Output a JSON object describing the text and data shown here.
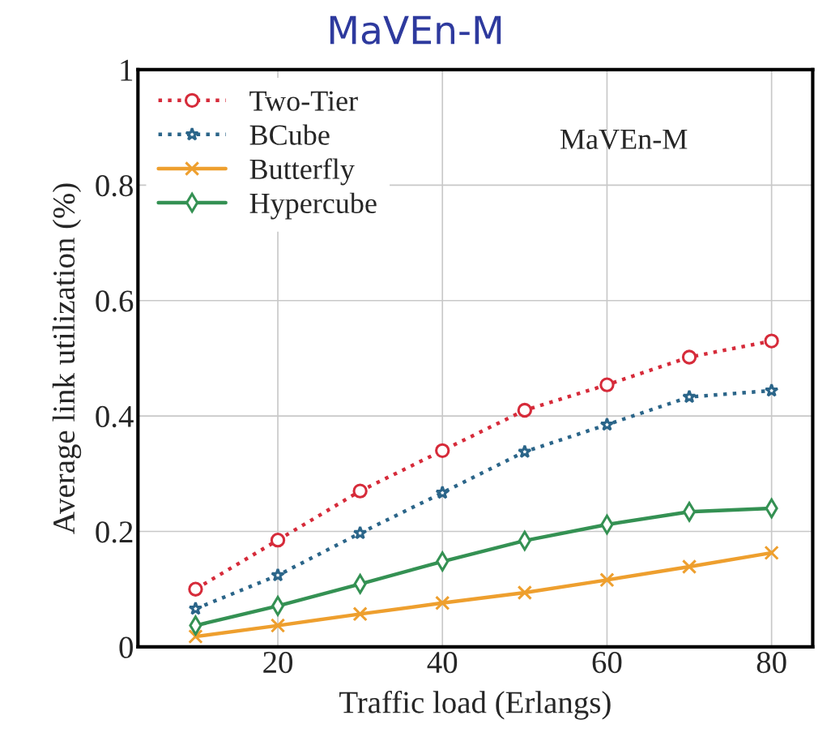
{
  "chart_data": {
    "type": "line",
    "title": "MaVEn-M",
    "xlabel": "Traffic load (Erlangs)",
    "ylabel": "Average link utilization (%)",
    "annotations": [
      "MaVEn-M"
    ],
    "x": [
      10,
      20,
      30,
      40,
      50,
      60,
      70,
      80
    ],
    "series": [
      {
        "name": "Two-Tier",
        "color": "#d62b3a",
        "marker": "circle",
        "line_style": "dotted",
        "values": [
          0.1,
          0.185,
          0.27,
          0.34,
          0.41,
          0.454,
          0.502,
          0.53
        ]
      },
      {
        "name": "BCube",
        "color": "#2b6589",
        "marker": "star",
        "line_style": "dotted",
        "values": [
          0.066,
          0.124,
          0.197,
          0.267,
          0.338,
          0.385,
          0.433,
          0.444
        ]
      },
      {
        "name": "Butterfly",
        "color": "#ee9f2e",
        "marker": "cross",
        "line_style": "solid",
        "values": [
          0.018,
          0.037,
          0.057,
          0.076,
          0.094,
          0.116,
          0.139,
          0.163
        ]
      },
      {
        "name": "Hypercube",
        "color": "#349153",
        "marker": "diamond",
        "line_style": "solid",
        "values": [
          0.037,
          0.071,
          0.109,
          0.148,
          0.184,
          0.212,
          0.234,
          0.24
        ]
      }
    ],
    "xlim": [
      3,
      85
    ],
    "xticks": [
      20,
      40,
      60,
      80
    ],
    "ylim": [
      0,
      1
    ],
    "yticks": [
      0,
      0.2,
      0.4,
      0.6,
      0.8,
      1
    ],
    "grid": true,
    "legend": "top left"
  }
}
